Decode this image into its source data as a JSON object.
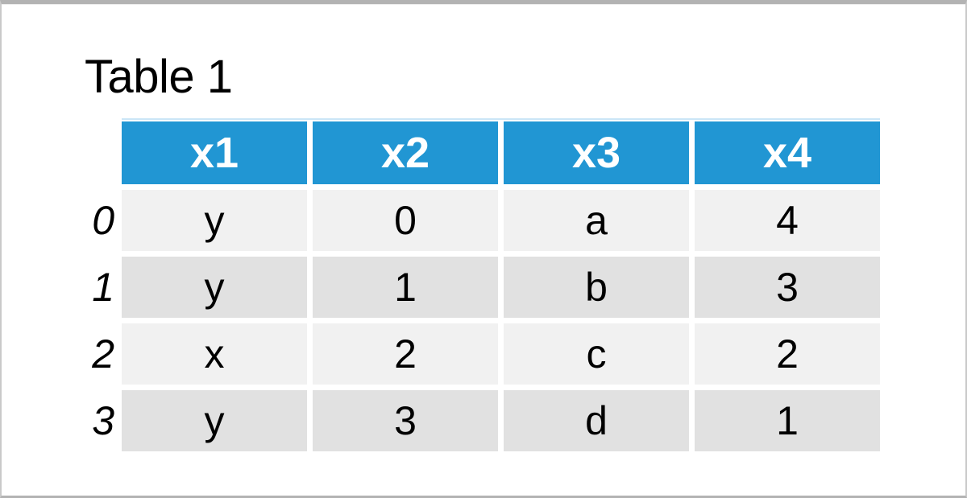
{
  "title": "Table 1",
  "chart_data": {
    "type": "table",
    "title": "Table 1",
    "columns": [
      "x1",
      "x2",
      "x3",
      "x4"
    ],
    "index": [
      "0",
      "1",
      "2",
      "3"
    ],
    "rows": [
      [
        "y",
        "0",
        "a",
        "4"
      ],
      [
        "y",
        "1",
        "b",
        "3"
      ],
      [
        "x",
        "2",
        "c",
        "2"
      ],
      [
        "y",
        "3",
        "d",
        "1"
      ]
    ]
  },
  "colors": {
    "header_bg": "#2196d3",
    "header_text": "#ffffff",
    "row_light": "#f1f1f1",
    "row_dark": "#e1e1e1",
    "accent_line": "#cbe6f7",
    "frame_border_top": "#b3b3b3",
    "frame_border_side": "#c9c9c9",
    "text": "#000000"
  }
}
